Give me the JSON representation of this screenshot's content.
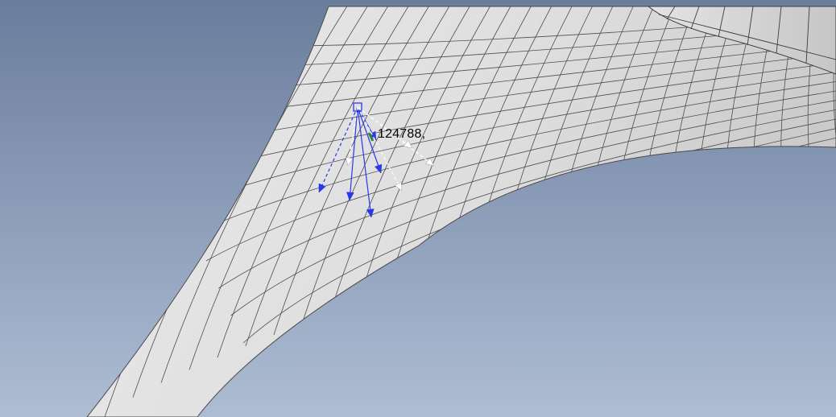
{
  "viewport": {
    "background_top": "#6a7d9c",
    "background_bottom": "#aebdd3",
    "mesh_color": "#e6e6e6",
    "mesh_line_color": "#4a4a4a",
    "vector_color": "#2a38e8",
    "secondary_vector_color": "#ffffff"
  },
  "selection": {
    "node_label": "124788,",
    "node_marker_icon": "square-node-marker-icon"
  }
}
